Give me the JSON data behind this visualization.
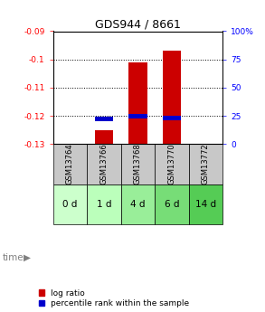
{
  "title": "GDS944 / 8661",
  "samples": [
    "GSM13764",
    "GSM13766",
    "GSM13768",
    "GSM13770",
    "GSM13772"
  ],
  "time_labels": [
    "0 d",
    "1 d",
    "4 d",
    "6 d",
    "14 d"
  ],
  "log_ratio": [
    null,
    -0.125,
    -0.101,
    -0.097,
    null
  ],
  "percentile_rank_pct": [
    null,
    22,
    25,
    23,
    null
  ],
  "ylim_left": [
    -0.13,
    -0.09
  ],
  "ylim_right": [
    0,
    100
  ],
  "left_ticks": [
    -0.13,
    -0.12,
    -0.11,
    -0.1,
    -0.09
  ],
  "right_ticks": [
    0,
    25,
    50,
    75,
    100
  ],
  "right_tick_labels": [
    "0",
    "25",
    "50",
    "75",
    "100%"
  ],
  "bar_width": 0.55,
  "log_ratio_color": "#cc0000",
  "percentile_color": "#0000cc",
  "header_bg": "#c8c8c8",
  "fig_width": 2.93,
  "fig_height": 3.45,
  "title_fontsize": 9,
  "tick_fontsize": 6.5,
  "legend_fontsize": 6.5,
  "sample_label_fontsize": 6,
  "time_label_fontsize": 7.5,
  "time_colors": [
    "#ccffcc",
    "#bbffbb",
    "#99ee99",
    "#77dd77",
    "#55cc55"
  ]
}
